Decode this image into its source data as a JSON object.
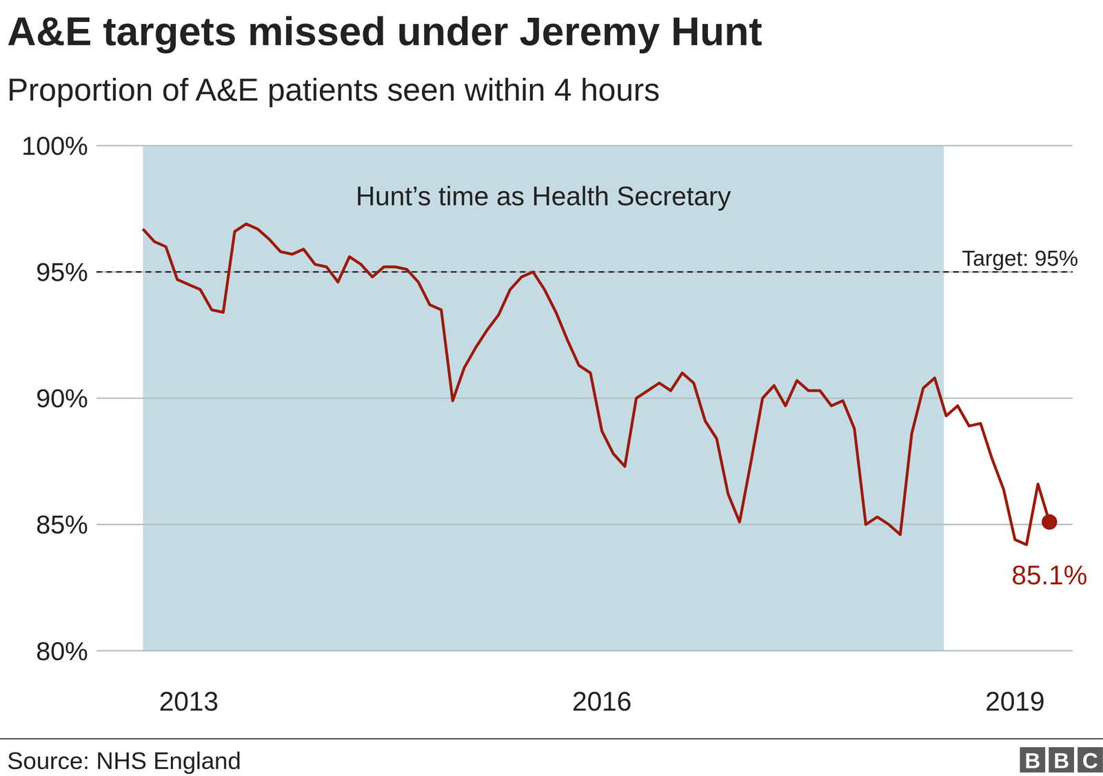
{
  "chart_data": {
    "type": "line",
    "title": "A&E targets missed under Jeremy Hunt",
    "subtitle": "Proportion of A&E patients seen within 4 hours",
    "source": "Source: NHS England",
    "logo": "BBC",
    "categories": [
      null,
      null,
      null,
      null,
      "2013",
      null,
      null,
      null,
      null,
      null,
      null,
      null,
      null,
      null,
      null,
      null,
      null,
      null,
      null,
      null,
      null,
      null,
      null,
      null,
      null,
      null,
      null,
      null,
      null,
      null,
      null,
      null,
      null,
      null,
      null,
      null,
      null,
      null,
      null,
      null,
      "2016",
      null,
      null,
      null,
      null,
      null,
      null,
      null,
      null,
      null,
      null,
      null,
      null,
      null,
      null,
      null,
      null,
      null,
      null,
      null,
      null,
      null,
      null,
      null,
      null,
      null,
      null,
      null,
      null,
      null,
      null,
      null,
      null,
      null,
      null,
      null,
      "2019",
      null,
      null,
      null
    ],
    "series": [
      {
        "name": "Proportion of A&E patients seen within 4 hours",
        "color": "#9e1a0b",
        "marker": "end-dot",
        "values": [
          96.7,
          96.2,
          96.0,
          94.7,
          94.5,
          94.3,
          93.5,
          93.4,
          96.6,
          96.9,
          96.7,
          96.3,
          95.8,
          95.7,
          95.9,
          95.3,
          95.2,
          94.6,
          95.6,
          95.3,
          94.8,
          95.2,
          95.2,
          95.1,
          94.6,
          93.7,
          93.5,
          89.9,
          91.2,
          92.0,
          92.7,
          93.3,
          94.3,
          94.8,
          95.0,
          94.3,
          93.4,
          92.3,
          91.3,
          91.0,
          88.7,
          87.8,
          87.3,
          90.0,
          90.3,
          90.6,
          90.3,
          91.0,
          90.6,
          89.1,
          88.4,
          86.2,
          85.1,
          87.5,
          90.0,
          90.5,
          89.7,
          90.7,
          90.3,
          90.3,
          89.7,
          89.9,
          88.8,
          85.0,
          85.3,
          85.0,
          84.6,
          88.6,
          90.4,
          90.8,
          89.3,
          89.7,
          88.9,
          89.0,
          87.6,
          86.4,
          84.4,
          84.2,
          86.6,
          85.1
        ],
        "value_labels": [
          null,
          null,
          null,
          null,
          null,
          null,
          null,
          null,
          null,
          null,
          null,
          null,
          null,
          null,
          null,
          null,
          null,
          null,
          null,
          null,
          null,
          null,
          null,
          null,
          null,
          null,
          null,
          null,
          null,
          null,
          null,
          null,
          null,
          null,
          null,
          null,
          null,
          null,
          null,
          null,
          null,
          null,
          null,
          null,
          null,
          null,
          null,
          null,
          null,
          null,
          null,
          null,
          null,
          null,
          null,
          null,
          null,
          null,
          null,
          null,
          null,
          null,
          null,
          null,
          null,
          null,
          null,
          null,
          null,
          null,
          null,
          null,
          null,
          null,
          null,
          null,
          null,
          null,
          null,
          "85.1%"
        ]
      }
    ],
    "ylim": [
      80,
      100
    ],
    "yticks": [
      {
        "value": 80,
        "label": "80%"
      },
      {
        "value": 85,
        "label": "85%"
      },
      {
        "value": 90,
        "label": "90%"
      },
      {
        "value": 95,
        "label": "95%"
      },
      {
        "value": 100,
        "label": "100%"
      }
    ],
    "grid": true,
    "reference_lines": [
      {
        "label": "Target: 95%",
        "value": 95,
        "line_style": "dashed",
        "color": "#222222"
      }
    ],
    "annotations": [
      {
        "text": "Hunt’s time as Health Secretary",
        "x_range": [
          0,
          69.8
        ],
        "color": "#c5dbe3"
      }
    ]
  }
}
